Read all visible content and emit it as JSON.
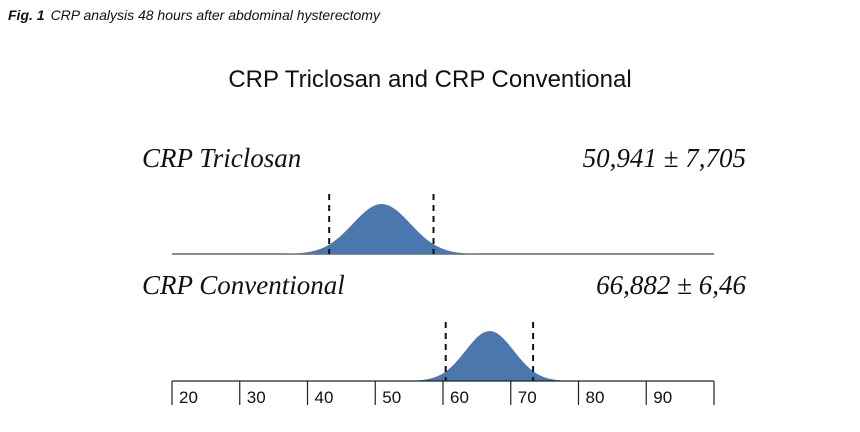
{
  "figure": {
    "caption_label": "Fig. 1",
    "caption_text": "CRP analysis 48 hours after abdominal hysterectomy"
  },
  "chart_data": {
    "type": "area",
    "title": "CRP Triclosan and CRP Conventional",
    "xlabel": "",
    "ylabel": "",
    "xlim": [
      20,
      100
    ],
    "x_ticks": [
      20,
      30,
      40,
      50,
      60,
      70,
      80,
      90
    ],
    "colors": {
      "fill": "#4a77ad",
      "line": "#222222",
      "axis": "#444444"
    },
    "series": [
      {
        "name": "CRP Triclosan",
        "stat_label": "50,941 ± 7,705",
        "mean": 50.941,
        "sd": 7.705,
        "dashed_bounds": [
          43.2,
          58.6
        ]
      },
      {
        "name": "CRP Conventional",
        "stat_label": "66,882 ± 6,46",
        "mean": 66.882,
        "sd": 6.46,
        "dashed_bounds": [
          60.4,
          73.3
        ]
      }
    ]
  }
}
